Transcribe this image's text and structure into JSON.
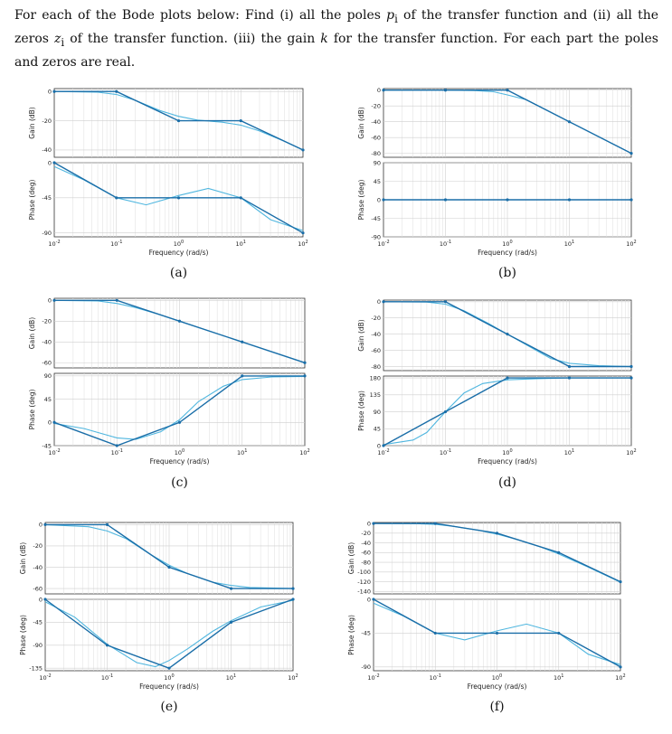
{
  "problem": {
    "part1": "For each of the Bode plots below: Find (i) all the poles ",
    "p": "p",
    "sub_i1": "i",
    "part2": " of the transfer function and (ii) all the zeros ",
    "z": "z",
    "sub_i2": "i",
    "part3": " of the transfer function. (iii) the gain ",
    "k": "k",
    "part4": " for the transfer function. For each part the poles and zeros are real."
  },
  "labels": {
    "gain": "Gain (dB)",
    "phase": "Phase (deg)",
    "freq": "Frequency (rad/s)",
    "x_base": "10",
    "x_exps": [
      "-2",
      "-1",
      "0",
      "1",
      "2"
    ]
  },
  "colors": {
    "asymptote": "#1a6ea8",
    "exact": "#4fb6df"
  },
  "chart_data": [
    {
      "type": "line",
      "caption": "(a)",
      "gain": {
        "ylim": [
          -45,
          2
        ],
        "ticks": [
          0,
          -20,
          -40
        ],
        "asymptote": {
          "x": [
            0.01,
            0.1,
            1,
            10,
            100
          ],
          "y": [
            0,
            0,
            -20,
            -20,
            -40
          ]
        },
        "exact": {
          "x": [
            0.01,
            0.05,
            0.1,
            0.2,
            0.5,
            1,
            2,
            5,
            10,
            20,
            50,
            100
          ],
          "y": [
            0,
            -0.5,
            -2,
            -6,
            -13,
            -17,
            -19.5,
            -21,
            -23,
            -27,
            -34,
            -40
          ]
        }
      },
      "phase": {
        "ylim": [
          -95,
          0
        ],
        "ticks": [
          0,
          -45,
          -90
        ],
        "asymptote": {
          "x": [
            0.01,
            0.1,
            1,
            10,
            100
          ],
          "y": [
            0,
            -45,
            -45,
            -45,
            -90
          ]
        },
        "exact": {
          "x": [
            0.01,
            0.03,
            0.1,
            0.3,
            1,
            3,
            10,
            30,
            100
          ],
          "y": [
            -5,
            -22,
            -45,
            -54,
            -42,
            -33,
            -45,
            -73,
            -87
          ]
        }
      }
    },
    {
      "type": "line",
      "caption": "(b)",
      "gain": {
        "ylim": [
          -85,
          2
        ],
        "ticks": [
          0,
          -20,
          -40,
          -60,
          -80
        ],
        "asymptote": {
          "x": [
            0.01,
            0.1,
            1,
            10,
            100
          ],
          "y": [
            0,
            0,
            0,
            -40,
            -80
          ]
        },
        "exact": {
          "x": [
            0.01,
            0.1,
            0.3,
            0.6,
            1,
            2,
            5,
            10,
            100
          ],
          "y": [
            0,
            0,
            -0.5,
            -2,
            -6,
            -12,
            -28,
            -40,
            -80
          ]
        }
      },
      "phase": {
        "ylim": [
          -90,
          90
        ],
        "ticks": [
          90,
          45,
          0,
          -45,
          -90
        ],
        "asymptote": {
          "x": [
            0.01,
            0.1,
            1,
            10,
            100
          ],
          "y": [
            0,
            0,
            0,
            0,
            0
          ]
        },
        "exact": {
          "x": [
            0.01,
            100
          ],
          "y": [
            0,
            0
          ]
        }
      }
    },
    {
      "type": "line",
      "caption": "(c)",
      "gain": {
        "ylim": [
          -65,
          2
        ],
        "ticks": [
          0,
          -20,
          -40,
          -60
        ],
        "asymptote": {
          "x": [
            0.01,
            0.1,
            1,
            10,
            100
          ],
          "y": [
            0,
            0,
            -20,
            -40,
            -60
          ]
        },
        "exact": {
          "x": [
            0.01,
            0.05,
            0.1,
            0.2,
            0.5,
            1,
            10,
            100
          ],
          "y": [
            0,
            -0.5,
            -3,
            -7,
            -14,
            -20,
            -40,
            -60
          ]
        }
      },
      "phase": {
        "ylim": [
          -45,
          95
        ],
        "ticks": [
          90,
          45,
          0,
          -45
        ],
        "asymptote": {
          "x": [
            0.01,
            0.1,
            1,
            10,
            100
          ],
          "y": [
            0,
            -45,
            0,
            90,
            90
          ]
        },
        "exact": {
          "x": [
            0.01,
            0.03,
            0.1,
            0.2,
            0.5,
            1,
            2,
            5,
            10,
            30,
            100
          ],
          "y": [
            -2,
            -12,
            -30,
            -33,
            -18,
            5,
            40,
            70,
            83,
            88,
            89
          ]
        }
      }
    },
    {
      "type": "line",
      "caption": "(d)",
      "gain": {
        "ylim": [
          -85,
          2
        ],
        "ticks": [
          0,
          -20,
          -40,
          -60,
          -80
        ],
        "asymptote": {
          "x": [
            0.01,
            0.1,
            1,
            10,
            100
          ],
          "y": [
            0,
            0,
            -40,
            -80,
            -80
          ]
        },
        "exact": {
          "x": [
            0.01,
            0.05,
            0.1,
            0.2,
            0.5,
            1,
            2,
            5,
            10,
            30,
            100
          ],
          "y": [
            0,
            -0.5,
            -3,
            -11,
            -27,
            -40,
            -53,
            -70,
            -76,
            -79,
            -80
          ]
        }
      },
      "phase": {
        "ylim": [
          0,
          185
        ],
        "ticks": [
          180,
          135,
          90,
          45,
          0
        ],
        "asymptote": {
          "x": [
            0.01,
            0.1,
            1,
            10,
            100
          ],
          "y": [
            0,
            90,
            180,
            180,
            180
          ]
        },
        "exact": {
          "x": [
            0.01,
            0.03,
            0.05,
            0.1,
            0.2,
            0.4,
            1,
            3,
            10,
            100
          ],
          "y": [
            3,
            15,
            35,
            90,
            140,
            165,
            175,
            178,
            180,
            180
          ]
        }
      }
    },
    {
      "type": "line",
      "caption": "(e)",
      "gain": {
        "ylim": [
          -65,
          2
        ],
        "ticks": [
          0,
          -20,
          -40,
          -60
        ],
        "asymptote": {
          "x": [
            0.01,
            0.1,
            1,
            10,
            100
          ],
          "y": [
            0,
            0,
            -40,
            -60,
            -60
          ]
        },
        "exact": {
          "x": [
            0.01,
            0.05,
            0.1,
            0.2,
            0.5,
            1,
            2,
            5,
            10,
            20,
            100
          ],
          "y": [
            0,
            -2,
            -6,
            -13,
            -28,
            -38,
            -46,
            -54,
            -57,
            -59,
            -60
          ]
        }
      },
      "phase": {
        "ylim": [
          -140,
          0
        ],
        "ticks": [
          0,
          -45,
          -90,
          -135
        ],
        "asymptote": {
          "x": [
            0.01,
            0.1,
            1,
            10,
            100
          ],
          "y": [
            0,
            -90,
            -135,
            -45,
            0
          ]
        },
        "exact": {
          "x": [
            0.01,
            0.03,
            0.1,
            0.3,
            0.6,
            1,
            2,
            5,
            10,
            30,
            100
          ],
          "y": [
            -5,
            -35,
            -88,
            -124,
            -132,
            -120,
            -97,
            -63,
            -42,
            -15,
            -2
          ]
        }
      }
    },
    {
      "type": "line",
      "caption": "(f)",
      "gain": {
        "ylim": [
          -145,
          2
        ],
        "ticks": [
          0,
          -20,
          -40,
          -60,
          -80,
          -100,
          -120,
          -140
        ],
        "asymptote": {
          "x": [
            0.01,
            0.1,
            1,
            10,
            100
          ],
          "y": [
            0,
            0,
            -20,
            -60,
            -120
          ]
        },
        "exact": {
          "x": [
            0.01,
            0.05,
            0.1,
            0.2,
            0.5,
            1,
            2,
            5,
            10,
            30,
            100
          ],
          "y": [
            0,
            -0.5,
            -2,
            -6,
            -14,
            -22,
            -32,
            -48,
            -63,
            -90,
            -121
          ]
        }
      },
      "phase": {
        "ylim": [
          -95,
          0
        ],
        "ticks": [
          0,
          -45,
          -90
        ],
        "asymptote": {
          "x": [
            0.01,
            0.1,
            1,
            10,
            100
          ],
          "y": [
            0,
            -45,
            -45,
            -45,
            -90
          ]
        },
        "exact": {
          "x": [
            0.01,
            0.03,
            0.1,
            0.3,
            1,
            3,
            10,
            30,
            100
          ],
          "y": [
            -5,
            -22,
            -45,
            -54,
            -42,
            -33,
            -45,
            -73,
            -87
          ]
        }
      }
    }
  ]
}
